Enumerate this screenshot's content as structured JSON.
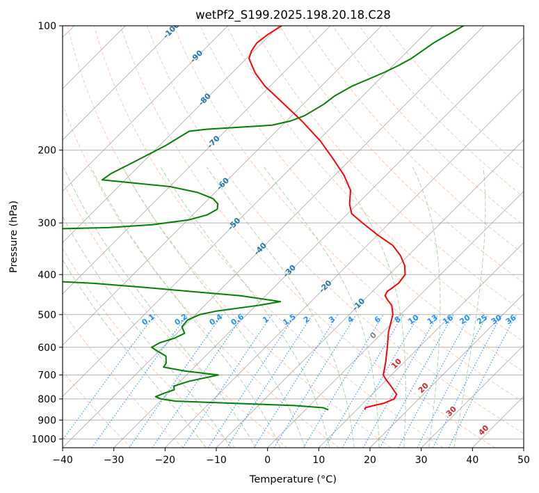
{
  "chart_data": {
    "type": "line",
    "title": "wetPf2_S199.2025.198.20.18.C28",
    "xlabel": "Temperature (°C)",
    "ylabel": "Pressure (hPa)",
    "xlim": [
      -40,
      50
    ],
    "ylim": [
      1050,
      100
    ],
    "y_scale": "log",
    "skew": true,
    "grid": true,
    "x_ticks": [
      -40,
      -30,
      -20,
      -10,
      0,
      10,
      20,
      30,
      40,
      50
    ],
    "y_ticks": [
      100,
      200,
      300,
      400,
      500,
      600,
      700,
      800,
      900,
      1000
    ],
    "series": [
      {
        "color": "#ff0000",
        "points": [
          [
            850,
            11.6
          ],
          [
            840,
            11.3
          ],
          [
            830,
            12.5
          ],
          [
            820,
            14.0
          ],
          [
            800,
            15.2
          ],
          [
            780,
            14.8
          ],
          [
            750,
            12.5
          ],
          [
            720,
            10.0
          ],
          [
            700,
            8.4
          ],
          [
            680,
            7.6
          ],
          [
            650,
            6.3
          ],
          [
            600,
            3.8
          ],
          [
            550,
            1.0
          ],
          [
            500,
            -1.5
          ],
          [
            475,
            -3.5
          ],
          [
            460,
            -5.5
          ],
          [
            450,
            -6.7
          ],
          [
            440,
            -7.1
          ],
          [
            430,
            -6.8
          ],
          [
            420,
            -6.5
          ],
          [
            400,
            -6.9
          ],
          [
            380,
            -8.8
          ],
          [
            360,
            -11.5
          ],
          [
            340,
            -15.0
          ],
          [
            320,
            -20.2
          ],
          [
            300,
            -25.3
          ],
          [
            285,
            -29.2
          ],
          [
            270,
            -31.5
          ],
          [
            250,
            -34.0
          ],
          [
            230,
            -38.2
          ],
          [
            210,
            -43.5
          ],
          [
            190,
            -49.5
          ],
          [
            170,
            -57.0
          ],
          [
            150,
            -66.0
          ],
          [
            140,
            -71.0
          ],
          [
            130,
            -75.5
          ],
          [
            120,
            -79.5
          ],
          [
            115,
            -80.5
          ],
          [
            110,
            -81.0
          ],
          [
            105,
            -80.5
          ],
          [
            100,
            -79.5
          ]
        ]
      },
      {
        "color": "#008000",
        "points": [
          [
            850,
            4.5
          ],
          [
            840,
            3.0
          ],
          [
            830,
            -3.0
          ],
          [
            820,
            -15.0
          ],
          [
            810,
            -27.0
          ],
          [
            800,
            -30.3
          ],
          [
            790,
            -31.8
          ],
          [
            775,
            -30.8
          ],
          [
            760,
            -29.5
          ],
          [
            745,
            -30.3
          ],
          [
            725,
            -28.3
          ],
          [
            700,
            -23.8
          ],
          [
            685,
            -31.0
          ],
          [
            670,
            -36.0
          ],
          [
            655,
            -36.3
          ],
          [
            630,
            -37.7
          ],
          [
            615,
            -40.0
          ],
          [
            600,
            -42.2
          ],
          [
            585,
            -41.5
          ],
          [
            570,
            -39.5
          ],
          [
            555,
            -38.5
          ],
          [
            535,
            -40.3
          ],
          [
            515,
            -40.5
          ],
          [
            500,
            -39.2
          ],
          [
            490,
            -36.5
          ],
          [
            475,
            -29.5
          ],
          [
            465,
            -26.0
          ],
          [
            450,
            -35.0
          ],
          [
            440,
            -45.0
          ],
          [
            430,
            -55.0
          ],
          [
            420,
            -66.0
          ],
          [
            415,
            -75.0
          ],
          [
            310,
            -84.0
          ],
          [
            308,
            -74.0
          ],
          [
            303,
            -66.0
          ],
          [
            295,
            -59.8
          ],
          [
            287,
            -57.2
          ],
          [
            278,
            -56.3
          ],
          [
            270,
            -57.2
          ],
          [
            262,
            -59.2
          ],
          [
            253,
            -63.5
          ],
          [
            245,
            -70.0
          ],
          [
            240,
            -78.0
          ],
          [
            236,
            -84.5
          ],
          [
            228,
            -84.0
          ],
          [
            215,
            -82.0
          ],
          [
            195,
            -78.8
          ],
          [
            180,
            -77.0
          ],
          [
            178,
            -74.0
          ],
          [
            176,
            -68.0
          ],
          [
            174,
            -62.0
          ],
          [
            170,
            -59.2
          ],
          [
            165,
            -57.5
          ],
          [
            155,
            -56.0
          ],
          [
            148,
            -55.5
          ],
          [
            140,
            -54.0
          ],
          [
            130,
            -50.5
          ],
          [
            125,
            -49.0
          ],
          [
            120,
            -47.8
          ],
          [
            110,
            -46.5
          ],
          [
            100,
            -44.0
          ]
        ]
      }
    ],
    "dry_adiabats": [
      -30,
      -20,
      -10,
      0,
      10,
      20,
      30,
      40,
      50,
      60,
      70,
      80,
      90,
      100,
      110,
      120,
      130,
      140
    ],
    "moist_adiabats": [
      -15,
      -10,
      -5,
      0,
      5,
      10,
      15,
      20,
      25,
      30,
      35
    ],
    "mixing_ratio_lines": [
      0.1,
      0.2,
      0.4,
      0.6,
      1,
      1.5,
      2,
      3,
      4,
      6,
      8,
      10,
      13,
      16,
      20,
      25,
      30,
      36
    ],
    "mixing_ratio_labels": [
      "0.1",
      "0.2",
      "0.4",
      "0.6",
      "1",
      "1.5",
      "2",
      "3",
      "4",
      "6",
      "8",
      "10",
      "13",
      "16",
      "20",
      "25",
      "30",
      "36"
    ],
    "isotherm_labels_cold": [
      "-100",
      "-90",
      "-80",
      "-70",
      "-60",
      "-50",
      "-40",
      "-30",
      "-20",
      "-10"
    ],
    "isotherm_labels_warm": [
      "0",
      "10",
      "20",
      "30",
      "40"
    ],
    "colors": {
      "temperature": "#ff0000",
      "dewpoint": "#008000",
      "dry_adiabat": "#ffa07a",
      "moist_adiabat": "#8fbc8f",
      "mixing_ratio": "#1e90ff",
      "isotherm_grid": "#808080",
      "cold_isotherm_label": "#1f77b4",
      "zero_isotherm_label": "#808080",
      "warm_isotherm_label": "#d62728",
      "mixing_ratio_label": "#1e90ff"
    }
  }
}
